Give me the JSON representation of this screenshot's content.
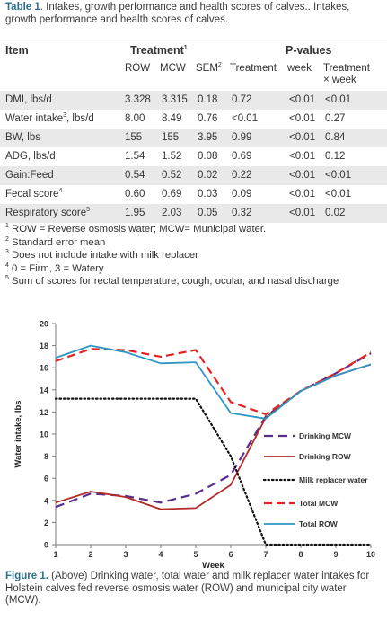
{
  "table": {
    "caption_label": "Table 1",
    "caption_text": ". Intakes, growth performance and health scores of calves.. Intakes, growth performance and health scores of calves.",
    "header": {
      "item": "Item",
      "treatment": "Treatment",
      "treatment_sup": "1",
      "pvalues": "P-values",
      "row": "ROW",
      "mcw": "MCW",
      "sem": "SEM",
      "sem_sup": "2",
      "p_treatment": "Treatment",
      "p_week": "week",
      "p_interaction_1": "Treatment",
      "p_interaction_2": "× week"
    },
    "rows": [
      {
        "item": "DMI, lbs/d",
        "sup": "",
        "item_suffix": "",
        "row": "3.328",
        "mcw": "3.315",
        "sem": "0.18",
        "p_trt": "0.72",
        "p_week": "<0.01",
        "p_int": "<0.01"
      },
      {
        "item": "Water intake",
        "sup": "3",
        "item_suffix": ", lbs/d",
        "row": "8.00",
        "mcw": "8.49",
        "sem": "0.76",
        "p_trt": "<0.01",
        "p_week": "<0.01",
        "p_int": "0.27"
      },
      {
        "item": "BW, lbs",
        "sup": "",
        "item_suffix": "",
        "row": "155",
        "mcw": "155",
        "sem": "3.95",
        "p_trt": "0.99",
        "p_week": "<0.01",
        "p_int": "0.84"
      },
      {
        "item": "ADG, lbs/d",
        "sup": "",
        "item_suffix": "",
        "row": "1.54",
        "mcw": "1.52",
        "sem": "0.08",
        "p_trt": "0.69",
        "p_week": "<0.01",
        "p_int": "0.12"
      },
      {
        "item": "Gain:Feed",
        "sup": "",
        "item_suffix": "",
        "row": "0.54",
        "mcw": "0.52",
        "sem": "0.02",
        "p_trt": "0.22",
        "p_week": "<0.01",
        "p_int": "<0.01"
      },
      {
        "item": "Fecal score",
        "sup": "4",
        "item_suffix": "",
        "row": "0.60",
        "mcw": "0.69",
        "sem": "0.03",
        "p_trt": "0.09",
        "p_week": "<0.01",
        "p_int": "<0.01"
      },
      {
        "item": "Respiratory score",
        "sup": "5",
        "item_suffix": "",
        "row": "1.95",
        "mcw": "2.03",
        "sem": "0.05",
        "p_trt": "0.32",
        "p_week": "<0.01",
        "p_int": "0.02"
      }
    ],
    "footnotes": [
      {
        "sup": "1",
        "text": " ROW = Reverse osmosis water; MCW= Municipal water."
      },
      {
        "sup": "2",
        "text": " Standard error mean"
      },
      {
        "sup": "3",
        "text": " Does not include intake with milk replacer"
      },
      {
        "sup": "4",
        "text": " 0 = Firm, 3 = Watery"
      },
      {
        "sup": "5",
        "text": " Sum of scores for rectal temperature, cough, ocular, and nasal discharge"
      }
    ]
  },
  "figure": {
    "caption_label": "Figure 1.",
    "caption_text": " (Above) Drinking water, total water and milk replacer water intakes for Holstein calves fed reverse osmosis water (ROW) and municipal city water (MCW)."
  },
  "chart_data": {
    "type": "line",
    "title": "",
    "xlabel": "Week",
    "ylabel": "Water intake, lbs",
    "x": [
      1,
      2,
      3,
      4,
      5,
      6,
      7,
      8,
      9,
      10
    ],
    "xlim": [
      1,
      10
    ],
    "ylim": [
      0,
      20
    ],
    "xticks": [
      "1",
      "2",
      "3",
      "4",
      "5",
      "6",
      "7",
      "8",
      "9",
      "10"
    ],
    "yticks": [
      "0",
      "2",
      "4",
      "6",
      "8",
      "10",
      "12",
      "14",
      "16",
      "18",
      "20"
    ],
    "grid": false,
    "legend_position": "right",
    "series": [
      {
        "name": "Drinking MCW",
        "color": "#5b2c8f",
        "dash": "long-dash",
        "values": [
          3.4,
          4.6,
          4.4,
          3.8,
          4.6,
          6.3,
          11.6,
          13.9,
          15.5,
          17.3
        ]
      },
      {
        "name": "Drinking ROW",
        "color": "#b22a2a",
        "dash": "solid",
        "values": [
          3.8,
          4.8,
          4.3,
          3.2,
          3.3,
          5.4,
          11.5,
          13.9,
          15.3,
          16.3
        ]
      },
      {
        "name": "Milk replacer water",
        "color": "#111111",
        "dash": "dotted",
        "values": [
          13.2,
          13.2,
          13.2,
          13.2,
          13.2,
          8.0,
          0.0,
          0.0,
          0.0,
          0.0
        ]
      },
      {
        "name": "Total MCW",
        "color": "#e32424",
        "dash": "dashed",
        "values": [
          16.6,
          17.7,
          17.6,
          17.0,
          17.6,
          12.9,
          11.8,
          13.9,
          15.5,
          17.4
        ]
      },
      {
        "name": "Total ROW",
        "color": "#2e96c4",
        "dash": "solid",
        "values": [
          16.9,
          18.0,
          17.4,
          16.4,
          16.5,
          11.9,
          11.4,
          13.9,
          15.3,
          16.3
        ]
      }
    ]
  }
}
